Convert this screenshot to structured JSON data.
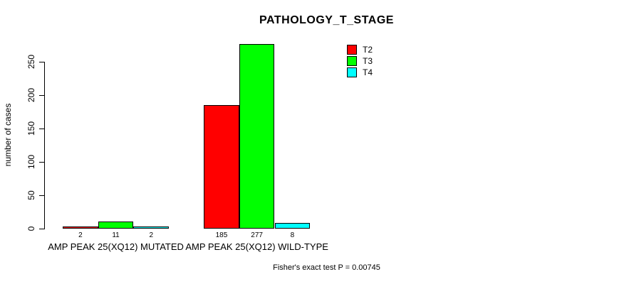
{
  "title": "PATHOLOGY_T_STAGE",
  "chart_data": {
    "type": "bar",
    "grouped": true,
    "title": "PATHOLOGY_T_STAGE",
    "xlabel": "",
    "ylabel": "number of cases",
    "ylim": [
      0,
      250
    ],
    "yticks": [
      0,
      50,
      100,
      150,
      200,
      250
    ],
    "grid": false,
    "legend_position": "top-right",
    "bar_value_labels_shown": true,
    "categories": [
      "AMP PEAK 25(XQ12) MUTATED",
      "AMP PEAK 25(XQ12) WILD-TYPE"
    ],
    "series": [
      {
        "name": "T2",
        "color": "#FF0000",
        "values": [
          2,
          185
        ]
      },
      {
        "name": "T3",
        "color": "#00FF00",
        "values": [
          11,
          277
        ]
      },
      {
        "name": "T4",
        "color": "#00FFFF",
        "values": [
          2,
          8
        ]
      }
    ]
  },
  "footer": {
    "stat_text": "Fisher's exact test P = 0.00745"
  },
  "colors": {
    "axis": "#000000",
    "background": "#FFFFFF",
    "t2": "#FF0000",
    "t3": "#00FF00",
    "t4": "#00FFFF"
  }
}
